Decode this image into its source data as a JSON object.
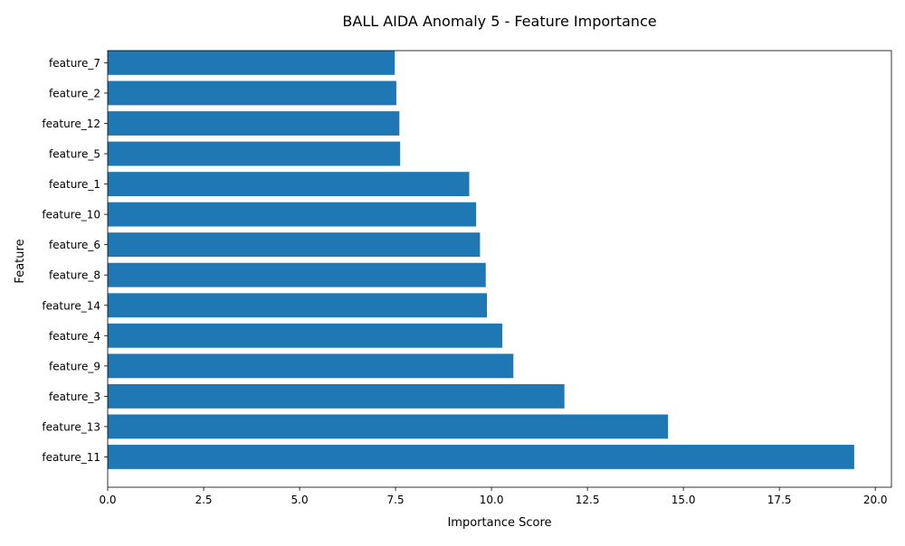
{
  "chart_data": {
    "type": "bar",
    "orientation": "horizontal",
    "title": "BALL AIDA Anomaly 5 - Feature Importance",
    "xlabel": "Importance Score",
    "ylabel": "Feature",
    "categories": [
      "feature_11",
      "feature_13",
      "feature_3",
      "feature_9",
      "feature_4",
      "feature_14",
      "feature_8",
      "feature_6",
      "feature_10",
      "feature_1",
      "feature_5",
      "feature_12",
      "feature_2",
      "feature_7"
    ],
    "values": [
      19.45,
      14.6,
      11.9,
      10.57,
      10.28,
      9.88,
      9.85,
      9.7,
      9.6,
      9.42,
      7.62,
      7.6,
      7.52,
      7.48
    ],
    "xlim": [
      0,
      20.42
    ],
    "xticks": [
      "0.0",
      "2.5",
      "5.0",
      "7.5",
      "10.0",
      "12.5",
      "15.0",
      "17.5",
      "20.0"
    ],
    "bar_color": "#1f77b4",
    "grid": false,
    "legend": "none"
  }
}
